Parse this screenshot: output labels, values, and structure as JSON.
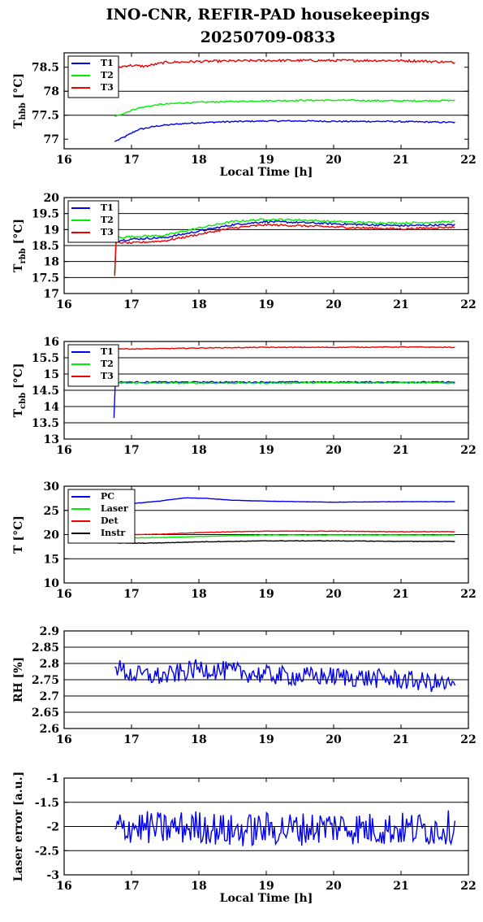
{
  "figure": {
    "title_line1": "INO-CNR, REFIR-PAD housekeepings",
    "title_line2": "20250709-0833"
  },
  "colors": {
    "blue": "#0000ee",
    "green": "#00ee00",
    "red": "#ee0000",
    "black": "#000000"
  },
  "chart_data": [
    {
      "type": "line",
      "ylabel_main": "T",
      "ylabel_sub": "hbb",
      "ylabel_unit": " [°C]",
      "xlabel": "Local Time [h]",
      "xlim": [
        16,
        22
      ],
      "ylim": [
        76.8,
        78.8
      ],
      "xticks": [
        16,
        17,
        18,
        19,
        20,
        21,
        22
      ],
      "xtick_labels": [
        "16",
        "17",
        "18",
        "19",
        "20",
        "21",
        "22"
      ],
      "yticks": [
        77,
        77.5,
        78,
        78.5
      ],
      "ytick_labels": [
        "77",
        "77.5",
        "78",
        "78.5"
      ],
      "grid": true,
      "legend_placement": "top-left",
      "series": [
        {
          "name": "T1",
          "color": "blue",
          "x": [
            16.75,
            16.9,
            17.1,
            17.4,
            17.8,
            18.3,
            19,
            19.6,
            20.2,
            20.8,
            21.3,
            21.8
          ],
          "y": [
            76.95,
            77.05,
            77.2,
            77.28,
            77.33,
            77.36,
            77.38,
            77.38,
            77.37,
            77.37,
            77.36,
            77.35
          ],
          "noise": 0.015
        },
        {
          "name": "T2",
          "color": "green",
          "x": [
            16.75,
            16.9,
            17.1,
            17.4,
            17.8,
            18.3,
            19,
            19.6,
            20.2,
            20.8,
            21.3,
            21.8
          ],
          "y": [
            77.47,
            77.55,
            77.65,
            77.72,
            77.76,
            77.78,
            77.8,
            77.81,
            77.81,
            77.8,
            77.8,
            77.81
          ],
          "noise": 0.015
        },
        {
          "name": "T3",
          "color": "red",
          "x": [
            16.75,
            16.95,
            17.2,
            17.5,
            18,
            18.5,
            19,
            19.6,
            20.2,
            20.8,
            21.3,
            21.8
          ],
          "y": [
            78.48,
            78.54,
            78.52,
            78.6,
            78.62,
            78.63,
            78.64,
            78.64,
            78.64,
            78.64,
            78.63,
            78.6
          ],
          "noise": 0.025
        }
      ]
    },
    {
      "type": "line",
      "ylabel_main": "T",
      "ylabel_sub": "rbb",
      "ylabel_unit": " [°C]",
      "xlabel": "",
      "xlim": [
        16,
        22
      ],
      "ylim": [
        17,
        20
      ],
      "xticks": [
        16,
        17,
        18,
        19,
        20,
        21,
        22
      ],
      "xtick_labels": [
        "16",
        "17",
        "18",
        "19",
        "20",
        "21",
        "22"
      ],
      "yticks": [
        17,
        17.5,
        18,
        18.5,
        19,
        19.5,
        20
      ],
      "ytick_labels": [
        "17",
        "17.5",
        "18",
        "18.5",
        "19",
        "19.5",
        "20"
      ],
      "grid": true,
      "legend_placement": "top-left",
      "series": [
        {
          "name": "T1",
          "color": "blue",
          "x": [
            16.75,
            16.77,
            17,
            17.5,
            18,
            18.5,
            19,
            19.5,
            20,
            20.5,
            21,
            21.8
          ],
          "y": [
            17.6,
            18.65,
            18.7,
            18.75,
            18.95,
            19.15,
            19.25,
            19.22,
            19.18,
            19.15,
            19.12,
            19.15
          ],
          "noise": 0.03
        },
        {
          "name": "T2",
          "color": "green",
          "x": [
            16.75,
            16.77,
            17,
            17.5,
            18,
            18.5,
            19,
            19.5,
            20,
            20.5,
            21,
            21.8
          ],
          "y": [
            17.6,
            18.75,
            18.78,
            18.82,
            19.05,
            19.25,
            19.32,
            19.3,
            19.25,
            19.22,
            19.2,
            19.25
          ],
          "noise": 0.03
        },
        {
          "name": "T3",
          "color": "red",
          "x": [
            16.75,
            16.77,
            17,
            17.5,
            18,
            18.5,
            19,
            19.5,
            20,
            20.5,
            21,
            21.8
          ],
          "y": [
            17.55,
            18.6,
            18.58,
            18.65,
            18.85,
            19.05,
            19.15,
            19.12,
            19.08,
            19.05,
            19.02,
            19.08
          ],
          "noise": 0.03
        }
      ]
    },
    {
      "type": "line",
      "ylabel_main": "T",
      "ylabel_sub": "cbb",
      "ylabel_unit": " [°C]",
      "xlabel": "",
      "xlim": [
        16,
        22
      ],
      "ylim": [
        13,
        16
      ],
      "xticks": [
        16,
        17,
        18,
        19,
        20,
        21,
        22
      ],
      "xtick_labels": [
        "16",
        "17",
        "18",
        "19",
        "20",
        "21",
        "22"
      ],
      "yticks": [
        13,
        13.5,
        14,
        14.5,
        15,
        15.5,
        16
      ],
      "ytick_labels": [
        "13",
        "13.5",
        "14",
        "14.5",
        "15",
        "15.5",
        "16"
      ],
      "grid": true,
      "legend_placement": "top-left",
      "series": [
        {
          "name": "T1",
          "color": "blue",
          "x": [
            16.74,
            16.76,
            17,
            18,
            19,
            20,
            21,
            21.8
          ],
          "y": [
            13.65,
            14.75,
            14.75,
            14.75,
            14.75,
            14.75,
            14.75,
            14.75
          ],
          "noise": 0.02
        },
        {
          "name": "T2",
          "color": "green",
          "x": [
            16.75,
            16.78,
            17,
            18,
            19,
            20,
            21,
            21.8
          ],
          "y": [
            14.72,
            14.72,
            14.72,
            14.72,
            14.72,
            14.73,
            14.73,
            14.72
          ],
          "noise": 0.02
        },
        {
          "name": "T3",
          "color": "red",
          "x": [
            16.75,
            17,
            17.5,
            18,
            19,
            20,
            21,
            21.8
          ],
          "y": [
            15.78,
            15.77,
            15.78,
            15.8,
            15.82,
            15.82,
            15.83,
            15.82
          ],
          "noise": 0.012
        }
      ]
    },
    {
      "type": "line",
      "ylabel_main": "T [°C]",
      "ylabel_sub": "",
      "ylabel_unit": "",
      "xlabel": "",
      "xlim": [
        16,
        22
      ],
      "ylim": [
        10,
        30
      ],
      "xticks": [
        16,
        17,
        18,
        19,
        20,
        21,
        22
      ],
      "xtick_labels": [
        "16",
        "17",
        "18",
        "19",
        "20",
        "21",
        "22"
      ],
      "yticks": [
        10,
        15,
        20,
        25,
        30
      ],
      "ytick_labels": [
        "10",
        "15",
        "20",
        "25",
        "30"
      ],
      "grid": true,
      "legend_placement": "top-left",
      "series": [
        {
          "name": "PC",
          "color": "blue",
          "x": [
            16.75,
            17,
            17.4,
            17.8,
            18.1,
            18.5,
            19,
            20,
            21,
            21.8
          ],
          "y": [
            26.2,
            26.4,
            26.9,
            27.6,
            27.5,
            27.1,
            26.9,
            26.7,
            26.8,
            26.8
          ],
          "noise": 0.03
        },
        {
          "name": "Laser",
          "color": "green",
          "x": [
            16.75,
            17,
            17.5,
            18,
            18.5,
            19,
            20,
            21,
            21.8
          ],
          "y": [
            19.5,
            19.3,
            19.4,
            19.6,
            19.8,
            19.9,
            19.9,
            19.9,
            19.9
          ],
          "noise": 0.05
        },
        {
          "name": "Det",
          "color": "red",
          "x": [
            16.75,
            17,
            17.5,
            18,
            18.5,
            19,
            20,
            21,
            21.8
          ],
          "y": [
            20.1,
            20.0,
            20.1,
            20.4,
            20.6,
            20.7,
            20.7,
            20.6,
            20.6
          ],
          "noise": 0.05
        },
        {
          "name": "Instr",
          "color": "black",
          "x": [
            16.75,
            17,
            17.5,
            18,
            18.5,
            19,
            20,
            21,
            21.8
          ],
          "y": [
            18.3,
            18.2,
            18.3,
            18.5,
            18.6,
            18.7,
            18.7,
            18.6,
            18.6
          ],
          "noise": 0.05
        }
      ]
    },
    {
      "type": "line",
      "ylabel_main": "RH [%]",
      "ylabel_sub": "",
      "ylabel_unit": "",
      "xlabel": "",
      "xlim": [
        16,
        22
      ],
      "ylim": [
        2.6,
        2.9
      ],
      "xticks": [
        16,
        17,
        18,
        19,
        20,
        21,
        22
      ],
      "xtick_labels": [
        "16",
        "17",
        "18",
        "19",
        "20",
        "21",
        "22"
      ],
      "yticks": [
        2.6,
        2.65,
        2.7,
        2.75,
        2.8,
        2.85,
        2.9
      ],
      "ytick_labels": [
        "2.6",
        "2.65",
        "2.7",
        "2.75",
        "2.8",
        "2.85",
        "2.9"
      ],
      "grid": true,
      "legend_placement": "none",
      "series": [
        {
          "name": "",
          "color": "blue",
          "x": [
            16.75,
            17,
            17.5,
            18,
            18.5,
            19,
            19.5,
            20,
            20.5,
            21,
            21.5,
            21.8
          ],
          "y": [
            2.79,
            2.765,
            2.76,
            2.785,
            2.775,
            2.765,
            2.76,
            2.76,
            2.755,
            2.75,
            2.74,
            2.73
          ],
          "noise": 0.03
        }
      ]
    },
    {
      "type": "line",
      "ylabel_main": "Laser error [a.u.]",
      "ylabel_sub": "",
      "ylabel_unit": "",
      "xlabel": "Local Time [h]",
      "xlim": [
        16,
        22
      ],
      "ylim": [
        -3,
        -1
      ],
      "xticks": [
        16,
        17,
        18,
        19,
        20,
        21,
        22
      ],
      "xtick_labels": [
        "16",
        "17",
        "18",
        "19",
        "20",
        "21",
        "22"
      ],
      "yticks": [
        -3,
        -2.5,
        -2,
        -1.5,
        -1
      ],
      "ytick_labels": [
        "-3",
        "-2.5",
        "-2",
        "-1.5",
        "-1"
      ],
      "grid": true,
      "legend_placement": "none",
      "series": [
        {
          "name": "",
          "color": "blue",
          "x": [
            16.75,
            17,
            17.5,
            18,
            18.5,
            19,
            19.5,
            20,
            20.5,
            21,
            21.5,
            21.8
          ],
          "y": [
            -2.05,
            -2.0,
            -2.05,
            -2.0,
            -2.1,
            -2.05,
            -2.05,
            -2.0,
            -2.05,
            -2.05,
            -2.05,
            -2.0
          ],
          "noise": 0.35
        }
      ]
    }
  ]
}
